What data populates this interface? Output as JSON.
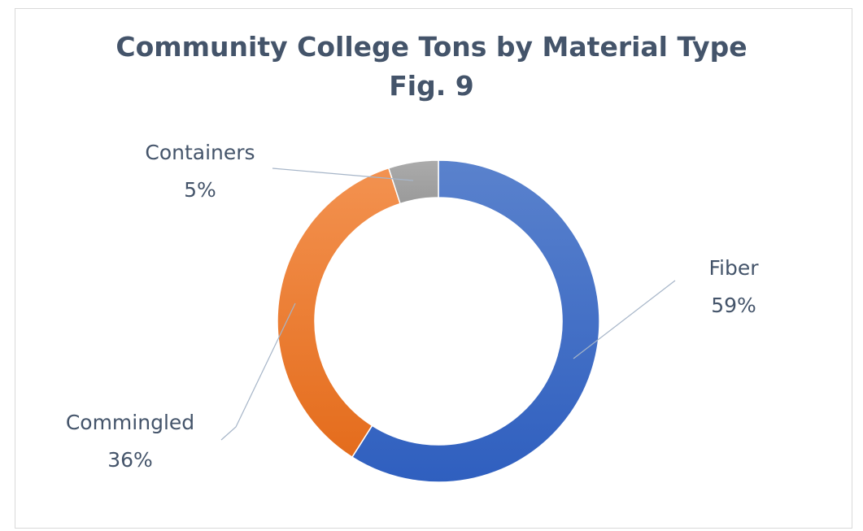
{
  "chart_data": {
    "type": "pie",
    "style": "donut",
    "title": "Community College Tons by Material Type",
    "subtitle": "Fig. 9",
    "slices": [
      {
        "label": "Fiber",
        "value": 59,
        "pct_label": "59%",
        "color": "#4472c4"
      },
      {
        "label": "Commingled",
        "value": 36,
        "pct_label": "36%",
        "color": "#ed7d31"
      },
      {
        "label": "Containers",
        "value": 5,
        "pct_label": "5%",
        "color": "#a5a5a5"
      }
    ],
    "legend": "none"
  }
}
